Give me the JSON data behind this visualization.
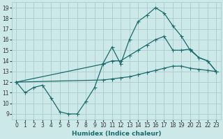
{
  "xlabel": "Humidex (Indice chaleur)",
  "bg_color": "#cce8e8",
  "grid_color": "#aacccc",
  "line_color": "#1a6b6b",
  "xlim": [
    -0.5,
    23.5
  ],
  "ylim": [
    8.5,
    19.5
  ],
  "xticks": [
    0,
    1,
    2,
    3,
    4,
    5,
    6,
    7,
    8,
    9,
    10,
    11,
    12,
    13,
    14,
    15,
    16,
    17,
    18,
    19,
    20,
    21,
    22,
    23
  ],
  "yticks": [
    9,
    10,
    11,
    12,
    13,
    14,
    15,
    16,
    17,
    18,
    19
  ],
  "line1_x": [
    0,
    1,
    2,
    3,
    4,
    5,
    6,
    7,
    8,
    9,
    10,
    11,
    12,
    13,
    14,
    15,
    16,
    17,
    18,
    19,
    20,
    21,
    22,
    23
  ],
  "line1_y": [
    12.0,
    11.0,
    11.5,
    11.7,
    10.5,
    9.2,
    9.0,
    9.0,
    10.2,
    11.5,
    13.8,
    15.3,
    13.7,
    16.0,
    17.7,
    18.3,
    19.0,
    18.5,
    17.3,
    16.3,
    15.0,
    14.3,
    14.0,
    13.0
  ],
  "line2_x": [
    0,
    10,
    11,
    12,
    13,
    14,
    15,
    16,
    17,
    18,
    19,
    20,
    21,
    22,
    23
  ],
  "line2_y": [
    12.0,
    13.7,
    14.0,
    14.0,
    14.5,
    15.0,
    15.5,
    16.0,
    16.3,
    15.0,
    15.0,
    15.1,
    14.3,
    14.0,
    13.0
  ],
  "line3_x": [
    0,
    10,
    11,
    12,
    13,
    14,
    15,
    16,
    17,
    18,
    19,
    20,
    21,
    22,
    23
  ],
  "line3_y": [
    12.0,
    12.2,
    12.3,
    12.4,
    12.5,
    12.7,
    12.9,
    13.1,
    13.3,
    13.5,
    13.5,
    13.3,
    13.2,
    13.1,
    13.0
  ]
}
